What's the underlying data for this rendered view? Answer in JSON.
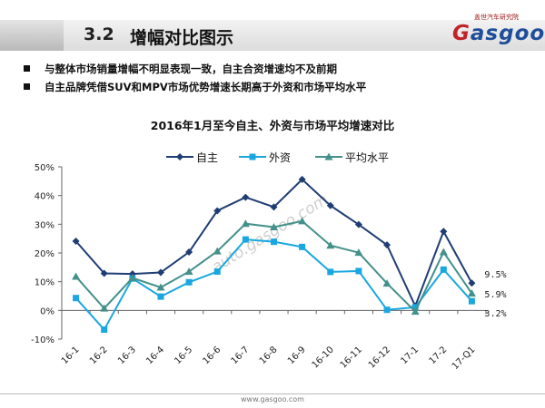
{
  "header": {
    "section_number": "3.2",
    "section_title": "增幅对比图示"
  },
  "logo": {
    "top_text": "盖世汽车研究院",
    "brand": "Gasgoo",
    "brand_colors": [
      "#c0232a",
      "#1f4d99"
    ]
  },
  "bullets": [
    "与整体市场销量增幅不明显表现一致，自主合资增速均不及前期",
    "自主品牌凭借SUV和MPV市场优势增速长期高于外资和市场平均水平"
  ],
  "chart_data": {
    "type": "line",
    "title": "2016年1月至今自主、外资与市场平均增速对比",
    "categories": [
      "16-1",
      "16-2",
      "16-3",
      "16-4",
      "16-5",
      "16-6",
      "16-7",
      "16-8",
      "16-9",
      "16-10",
      "16-11",
      "16-12",
      "17-1",
      "17-2",
      "17-Q1"
    ],
    "ylim": [
      -0.1,
      0.5
    ],
    "yticks": [
      -0.1,
      0.0,
      0.1,
      0.2,
      0.3,
      0.4,
      0.5
    ],
    "ytick_labels": [
      "-10%",
      "0%",
      "10%",
      "20%",
      "30%",
      "40%",
      "50%"
    ],
    "legend_position": "top",
    "grid": false,
    "series": [
      {
        "name": "自主",
        "color": "#1f3c73",
        "marker": "diamond",
        "values": [
          0.241,
          0.129,
          0.127,
          0.132,
          0.203,
          0.347,
          0.394,
          0.36,
          0.456,
          0.365,
          0.299,
          0.228,
          0.015,
          0.275,
          0.095
        ],
        "end_label": "9.5%"
      },
      {
        "name": "外资",
        "color": "#1aa7e0",
        "marker": "square",
        "values": [
          0.043,
          -0.067,
          0.111,
          0.048,
          0.098,
          0.135,
          0.247,
          0.239,
          0.221,
          0.134,
          0.137,
          0.002,
          0.011,
          0.142,
          0.032
        ],
        "end_label": "3.2%"
      },
      {
        "name": "平均水平",
        "color": "#43918a",
        "marker": "triangle",
        "values": [
          0.118,
          0.007,
          0.113,
          0.08,
          0.135,
          0.206,
          0.302,
          0.29,
          0.311,
          0.226,
          0.201,
          0.094,
          -0.004,
          0.203,
          0.059
        ],
        "end_label": "5.9%"
      }
    ]
  },
  "watermark": "auto.gasgoo.com",
  "footer": {
    "url": "www.gasgoo.com"
  }
}
